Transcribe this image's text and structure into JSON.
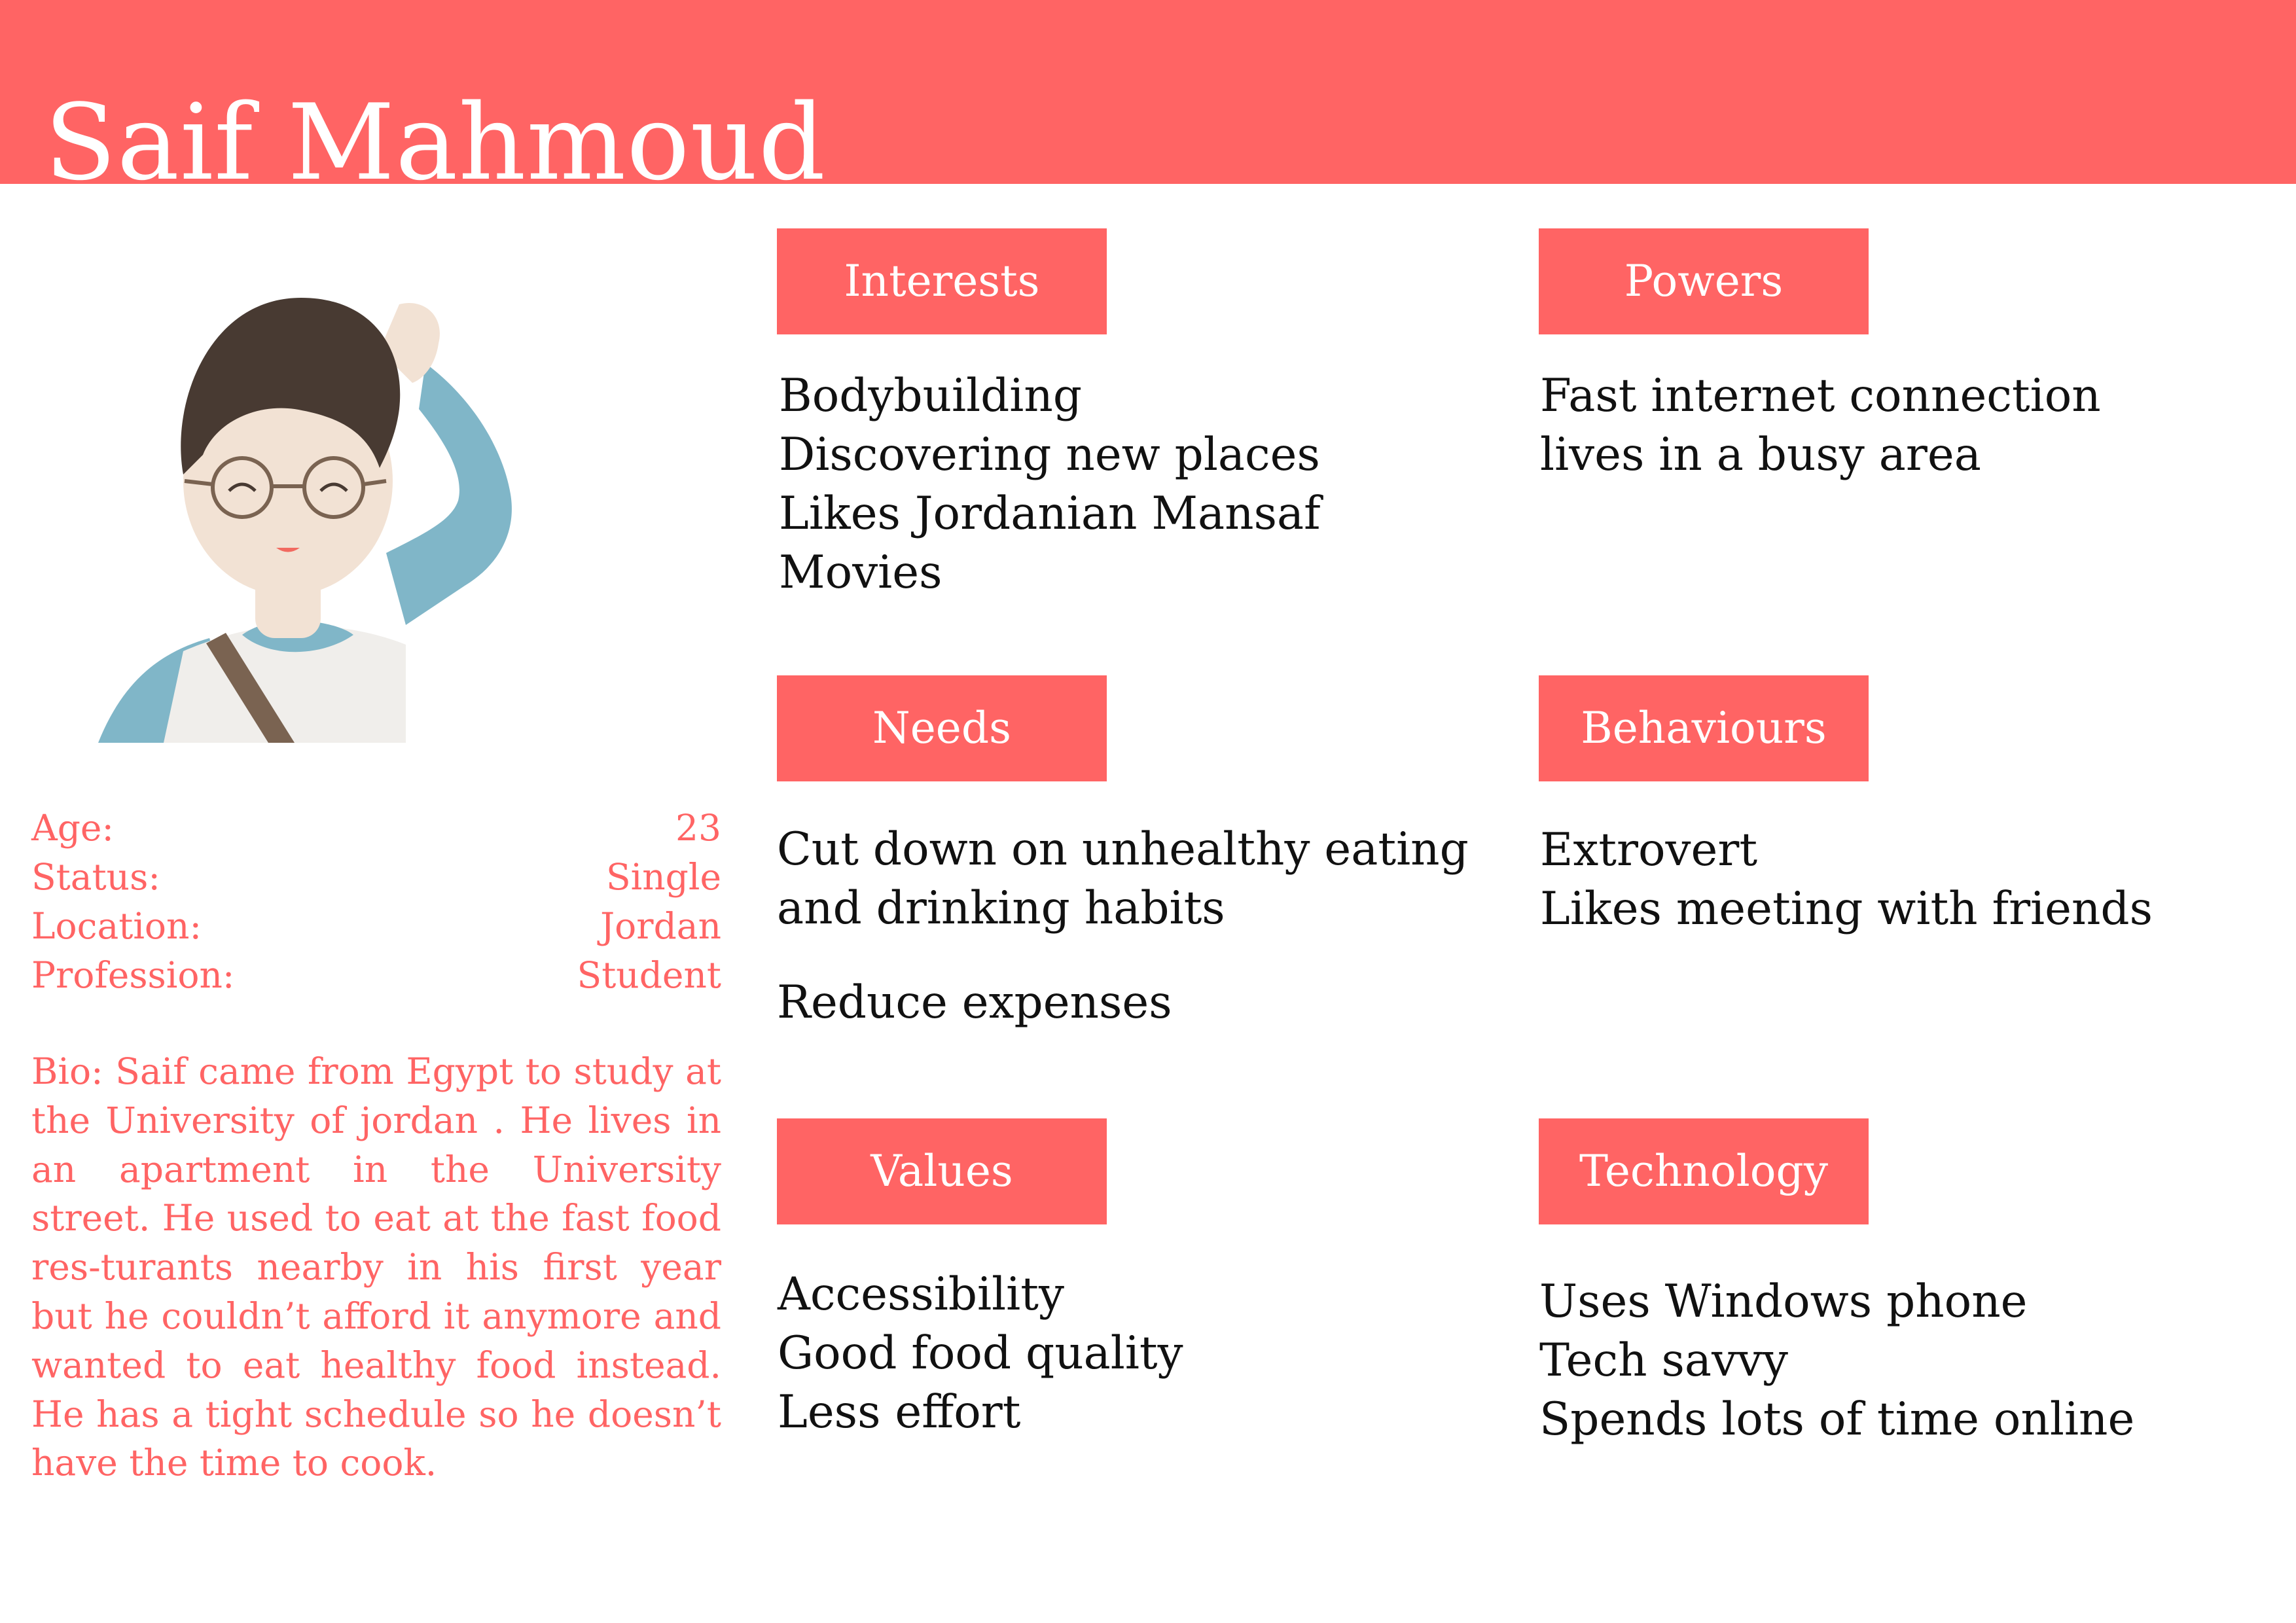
{
  "persona": {
    "name": "Saif Mahmoud"
  },
  "details": [
    {
      "label": "Age:",
      "value": "23"
    },
    {
      "label": "Status:",
      "value": "Single"
    },
    {
      "label": "Location:",
      "value": "Jordan"
    },
    {
      "label": "Profession:",
      "value": "Student"
    }
  ],
  "bio": "Bio: Saif came from Egypt to study at the University of jordan . He lives in an apartment in the University street. He used to eat at the fast food res-turants nearby in his first year but he couldn’t afford it anymore and wanted to eat healthy food instead. He has a tight schedule so he doesn’t have the time to cook.",
  "sections": {
    "interests": {
      "title": "Interests",
      "items": [
        "Bodybuilding",
        "Discovering new places",
        "Likes Jordanian Mansaf",
        "Movies"
      ]
    },
    "powers": {
      "title": "Powers",
      "items": [
        "Fast internet connection",
        "lives in a busy area"
      ]
    },
    "needs": {
      "title": "Needs",
      "items": [
        "Cut down on unhealthy eating",
        "and drinking habits",
        "Reduce expenses"
      ]
    },
    "behaviours": {
      "title": "Behaviours",
      "items": [
        "Extrovert",
        "Likes meeting with friends"
      ]
    },
    "values": {
      "title": "Values",
      "items": [
        "Accessibility",
        "Good food quality",
        "Less effort"
      ]
    },
    "technology": {
      "title": "Technology",
      "items": [
        "Uses Windows phone",
        "Tech savvy",
        "Spends lots of time online"
      ]
    }
  },
  "colors": {
    "accent": "#ff6464",
    "text": "#111111",
    "background": "#ffffff"
  }
}
